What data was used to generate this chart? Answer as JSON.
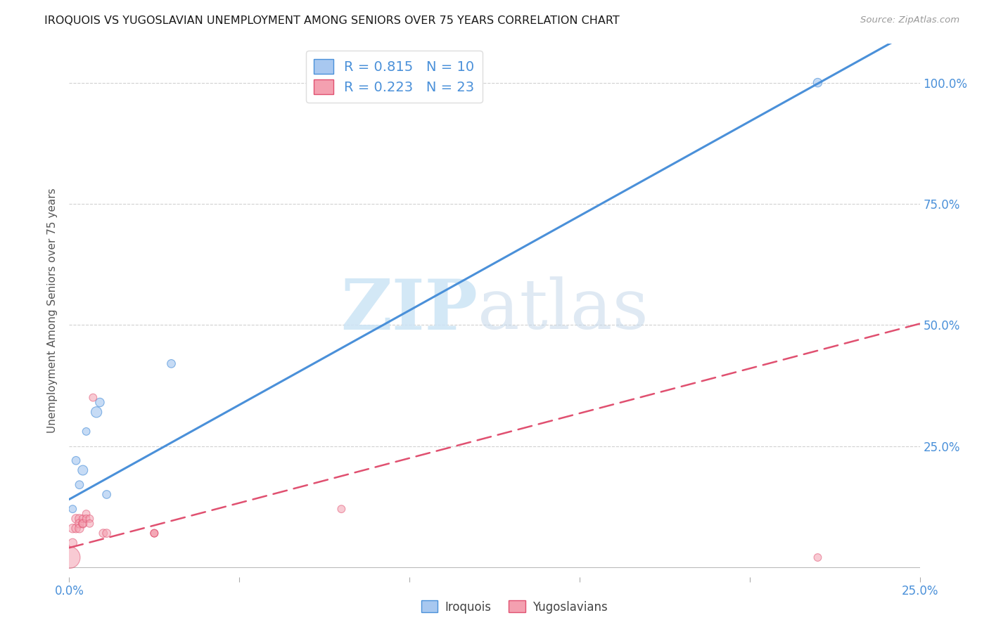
{
  "title": "IROQUOIS VS YUGOSLAVIAN UNEMPLOYMENT AMONG SENIORS OVER 75 YEARS CORRELATION CHART",
  "source": "Source: ZipAtlas.com",
  "ylabel": "Unemployment Among Seniors over 75 years",
  "xlim": [
    0.0,
    0.25
  ],
  "ylim": [
    -0.02,
    1.08
  ],
  "iroquois_color": "#a8c8f0",
  "iroquois_line_color": "#4a90d9",
  "yugoslavian_color": "#f4a0b0",
  "yugoslavian_line_color": "#e05070",
  "R_iroquois": 0.815,
  "N_iroquois": 10,
  "R_yugoslavian": 0.223,
  "N_yugoslavian": 23,
  "background_color": "#ffffff",
  "iroquois_x": [
    0.001,
    0.002,
    0.003,
    0.004,
    0.005,
    0.008,
    0.009,
    0.011,
    0.03,
    0.22
  ],
  "iroquois_y": [
    0.12,
    0.22,
    0.17,
    0.2,
    0.28,
    0.32,
    0.34,
    0.15,
    0.42,
    1.0
  ],
  "iroquois_size": [
    60,
    70,
    70,
    100,
    60,
    120,
    80,
    70,
    70,
    80
  ],
  "yugoslavian_x": [
    0.0,
    0.001,
    0.001,
    0.002,
    0.002,
    0.003,
    0.003,
    0.003,
    0.004,
    0.004,
    0.004,
    0.005,
    0.005,
    0.006,
    0.006,
    0.007,
    0.01,
    0.011,
    0.025,
    0.025,
    0.025,
    0.08,
    0.22
  ],
  "yugoslavian_y": [
    0.02,
    0.08,
    0.05,
    0.1,
    0.08,
    0.1,
    0.09,
    0.08,
    0.09,
    0.1,
    0.09,
    0.11,
    0.1,
    0.1,
    0.09,
    0.35,
    0.07,
    0.07,
    0.07,
    0.07,
    0.07,
    0.12,
    0.02
  ],
  "yugoslavian_size": [
    500,
    80,
    80,
    80,
    80,
    80,
    80,
    80,
    80,
    60,
    60,
    60,
    60,
    60,
    60,
    60,
    70,
    70,
    60,
    60,
    60,
    60,
    60
  ],
  "grid_color": "#cccccc",
  "iroquois_line_intercept": 0.14,
  "iroquois_line_slope": 3.9,
  "yugoslavian_line_intercept": 0.04,
  "yugoslavian_line_slope": 1.85
}
